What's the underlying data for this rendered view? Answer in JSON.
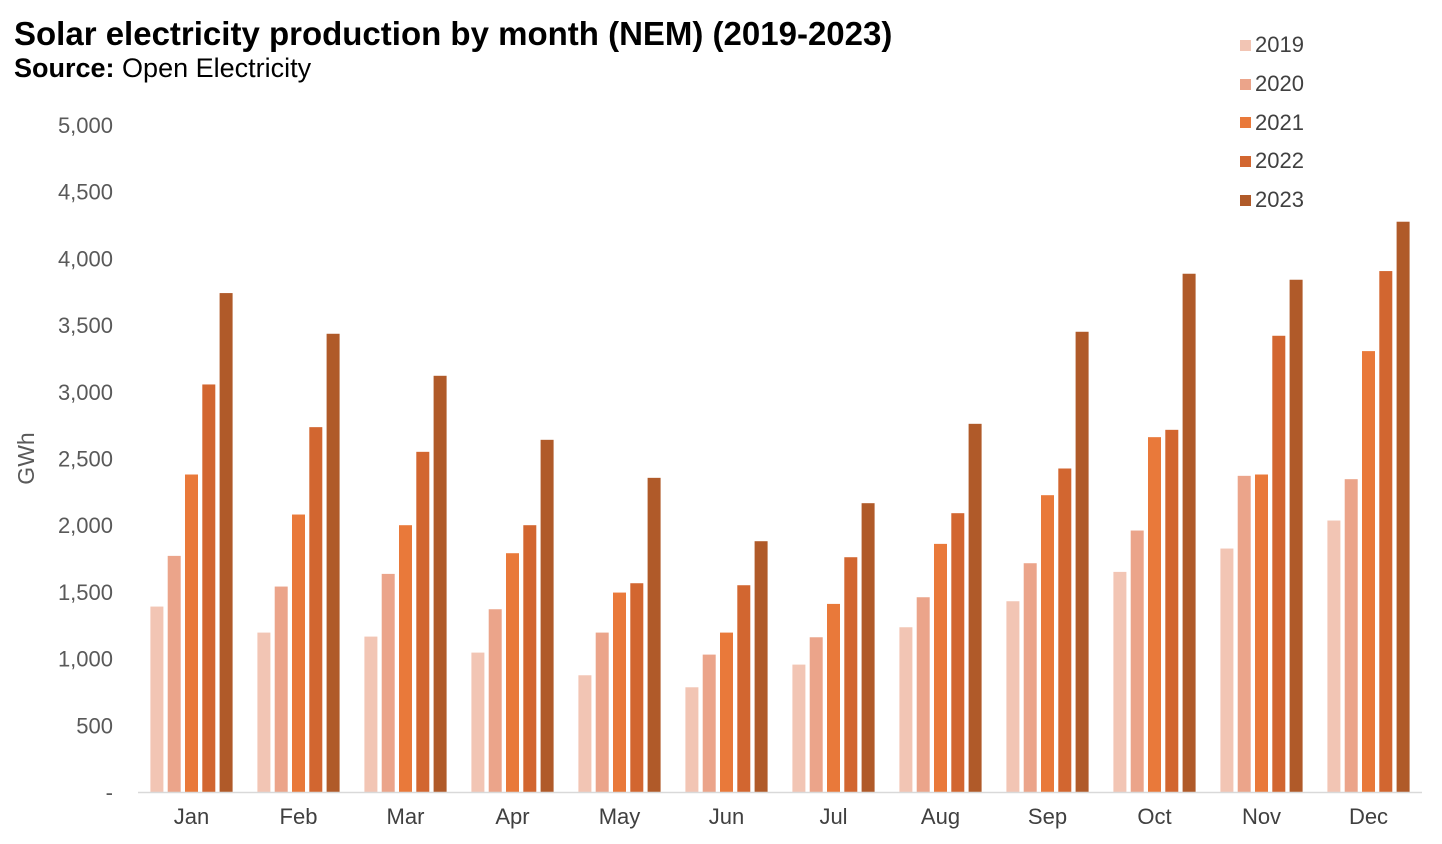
{
  "title": "Solar electricity production by month (NEM) (2019-2023)",
  "subtitle_label": "Source:",
  "subtitle_value": "Open Electricity",
  "chart_data": {
    "type": "bar",
    "title": "Solar electricity production by month (NEM) (2019-2023)",
    "subtitle": "Source: Open Electricity",
    "xlabel": "",
    "ylabel": "GWh",
    "ylim": [
      0,
      5000
    ],
    "yticks": [
      0,
      500,
      1000,
      1500,
      2000,
      2500,
      3000,
      3500,
      4000,
      4500,
      5000
    ],
    "ytick_labels": [
      "-",
      "500",
      "1,000",
      "1,500",
      "2,000",
      "2,500",
      "3,000",
      "3,500",
      "4,000",
      "4,500",
      "5,000"
    ],
    "grid": false,
    "legend_position": "top-right",
    "categories": [
      "Jan",
      "Feb",
      "Mar",
      "Apr",
      "May",
      "Jun",
      "Jul",
      "Aug",
      "Sep",
      "Oct",
      "Nov",
      "Dec"
    ],
    "series": [
      {
        "name": "2019",
        "color": "#f2c5b4",
        "values": [
          1390,
          1195,
          1165,
          1045,
          875,
          785,
          955,
          1235,
          1430,
          1650,
          1825,
          2035
        ]
      },
      {
        "name": "2020",
        "color": "#eba48a",
        "values": [
          1770,
          1540,
          1635,
          1370,
          1195,
          1030,
          1160,
          1460,
          1715,
          1960,
          2370,
          2345
        ]
      },
      {
        "name": "2021",
        "color": "#e9793a",
        "values": [
          2380,
          2080,
          2000,
          1790,
          1495,
          1195,
          1410,
          1860,
          2225,
          2660,
          2380,
          3305
        ]
      },
      {
        "name": "2022",
        "color": "#d26630",
        "values": [
          3055,
          2735,
          2550,
          2000,
          1565,
          1550,
          1760,
          2090,
          2425,
          2715,
          3420,
          3905
        ]
      },
      {
        "name": "2023",
        "color": "#b05a29",
        "values": [
          3740,
          3435,
          3120,
          2640,
          2355,
          1880,
          2165,
          2760,
          3450,
          3885,
          3840,
          4275
        ]
      }
    ]
  }
}
